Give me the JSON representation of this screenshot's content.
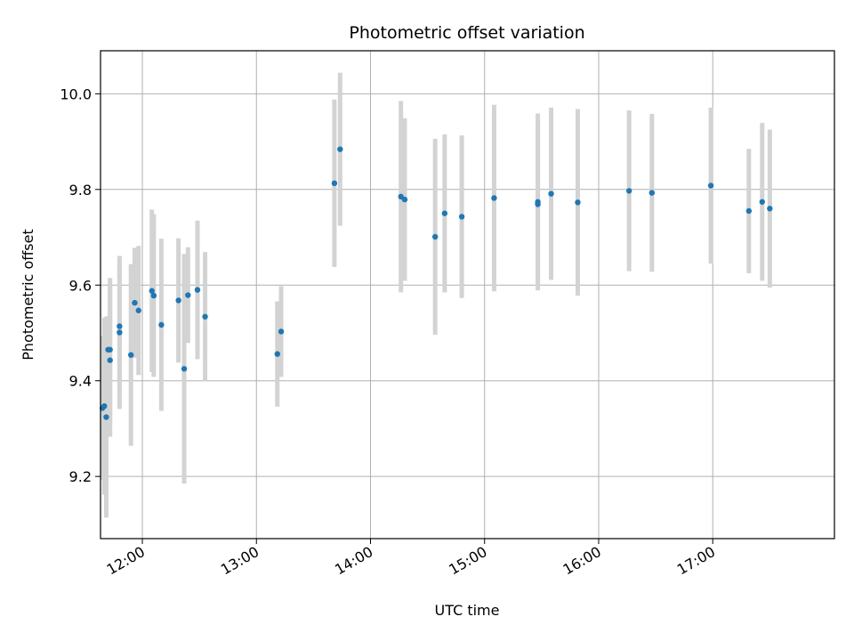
{
  "chart_data": {
    "type": "scatter",
    "title": "Photometric offset variation",
    "xlabel": "UTC time",
    "ylabel": "Photometric offset",
    "x_unit": "UTC time (HH:MM)",
    "xlim": [
      "11:38",
      "18:04"
    ],
    "ylim": [
      9.07,
      10.09
    ],
    "x_ticks": [
      "12:00",
      "13:00",
      "14:00",
      "15:00",
      "16:00",
      "17:00"
    ],
    "y_ticks": [
      9.2,
      9.4,
      9.6,
      9.8,
      10.0
    ],
    "y_tick_labels": [
      "9.2",
      "9.4",
      "9.6",
      "9.8",
      "10.0"
    ],
    "grid": true,
    "legend": "none",
    "colors": {
      "point": "#1f77b4",
      "errorbar": "#d3d3d3",
      "grid": "#b0b0b0"
    },
    "points": [
      {
        "x": "11:39",
        "y": 9.343,
        "err": 0.15
      },
      {
        "x": "11:40",
        "y": 9.347,
        "err": 0.185
      },
      {
        "x": "11:41",
        "y": 9.324,
        "err": 0.21
      },
      {
        "x": "11:42",
        "y": 9.465,
        "err": 0.07
      },
      {
        "x": "11:43",
        "y": 9.465,
        "err": 0.15
      },
      {
        "x": "11:43",
        "y": 9.443,
        "err": 0.16
      },
      {
        "x": "11:48",
        "y": 9.514,
        "err": 0.13
      },
      {
        "x": "11:48",
        "y": 9.501,
        "err": 0.16
      },
      {
        "x": "11:54",
        "y": 9.454,
        "err": 0.19
      },
      {
        "x": "11:56",
        "y": 9.563,
        "err": 0.115
      },
      {
        "x": "11:58",
        "y": 9.547,
        "err": 0.135
      },
      {
        "x": "12:05",
        "y": 9.588,
        "err": 0.17
      },
      {
        "x": "12:06",
        "y": 9.578,
        "err": 0.17
      },
      {
        "x": "12:10",
        "y": 9.517,
        "err": 0.18
      },
      {
        "x": "12:19",
        "y": 9.568,
        "err": 0.13
      },
      {
        "x": "12:22",
        "y": 9.425,
        "err": 0.24
      },
      {
        "x": "12:24",
        "y": 9.579,
        "err": 0.1
      },
      {
        "x": "12:29",
        "y": 9.59,
        "err": 0.145
      },
      {
        "x": "12:33",
        "y": 9.534,
        "err": 0.135
      },
      {
        "x": "13:11",
        "y": 9.456,
        "err": 0.11
      },
      {
        "x": "13:13",
        "y": 9.503,
        "err": 0.095
      },
      {
        "x": "13:41",
        "y": 9.813,
        "err": 0.175
      },
      {
        "x": "13:44",
        "y": 9.884,
        "err": 0.16
      },
      {
        "x": "14:16",
        "y": 9.785,
        "err": 0.2
      },
      {
        "x": "14:18",
        "y": 9.779,
        "err": 0.17
      },
      {
        "x": "14:34",
        "y": 9.701,
        "err": 0.205
      },
      {
        "x": "14:39",
        "y": 9.75,
        "err": 0.165
      },
      {
        "x": "14:48",
        "y": 9.743,
        "err": 0.17
      },
      {
        "x": "15:05",
        "y": 9.782,
        "err": 0.195
      },
      {
        "x": "15:28",
        "y": 9.769,
        "err": 0.17
      },
      {
        "x": "15:28",
        "y": 9.774,
        "err": 0.185
      },
      {
        "x": "15:35",
        "y": 9.791,
        "err": 0.18
      },
      {
        "x": "15:49",
        "y": 9.773,
        "err": 0.195
      },
      {
        "x": "16:16",
        "y": 9.797,
        "err": 0.168
      },
      {
        "x": "16:28",
        "y": 9.793,
        "err": 0.165
      },
      {
        "x": "16:59",
        "y": 9.808,
        "err": 0.163
      },
      {
        "x": "17:19",
        "y": 9.755,
        "err": 0.13
      },
      {
        "x": "17:26",
        "y": 9.774,
        "err": 0.165
      },
      {
        "x": "17:30",
        "y": 9.76,
        "err": 0.165
      }
    ]
  }
}
